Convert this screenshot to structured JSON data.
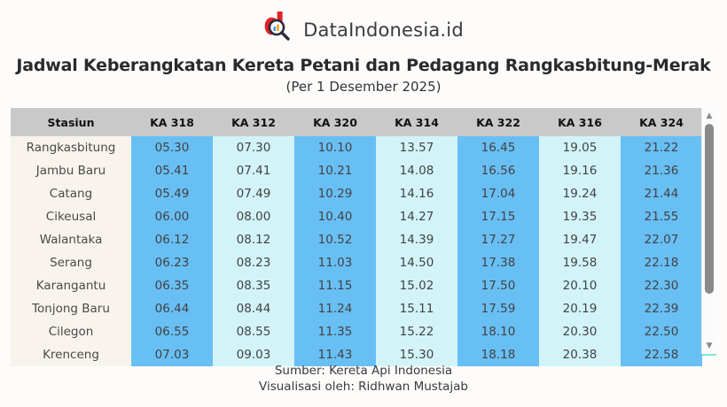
{
  "brand": {
    "name": "DataIndonesia.id"
  },
  "title": "Jadwal Keberangkatan Kereta Petani dan Pedagang Rangkasbitung-Merak",
  "subtitle": "(Per 1 Desember 2025)",
  "table": {
    "columns": [
      "Stasiun",
      "KA 318",
      "KA 312",
      "KA 320",
      "KA 314",
      "KA 322",
      "KA 316",
      "KA 324"
    ],
    "rows": [
      {
        "station": "Rangkasbitung",
        "times": [
          "05.30",
          "07.30",
          "10.10",
          "13.57",
          "16.45",
          "19.05",
          "21.22"
        ]
      },
      {
        "station": "Jambu Baru",
        "times": [
          "05.41",
          "07.41",
          "10.21",
          "14.08",
          "16.56",
          "19.16",
          "21.36"
        ]
      },
      {
        "station": "Catang",
        "times": [
          "05.49",
          "07.49",
          "10.29",
          "14.16",
          "17.04",
          "19.24",
          "21.44"
        ]
      },
      {
        "station": "Cikeusal",
        "times": [
          "06.00",
          "08.00",
          "10.40",
          "14.27",
          "17.15",
          "19.35",
          "21.55"
        ]
      },
      {
        "station": "Walantaka",
        "times": [
          "06.12",
          "08.12",
          "10.52",
          "14.39",
          "17.27",
          "19.47",
          "22.07"
        ]
      },
      {
        "station": "Serang",
        "times": [
          "06.23",
          "08.23",
          "11.03",
          "14.50",
          "17.38",
          "19.58",
          "22.18"
        ]
      },
      {
        "station": "Karangantu",
        "times": [
          "06.35",
          "08.35",
          "11.15",
          "15.02",
          "17.50",
          "20.10",
          "22.30"
        ]
      },
      {
        "station": "Tonjong Baru",
        "times": [
          "06.44",
          "08.44",
          "11.24",
          "15.11",
          "17.59",
          "20.19",
          "22.39"
        ]
      },
      {
        "station": "Cilegon",
        "times": [
          "06.55",
          "08.55",
          "11.35",
          "15.22",
          "18.10",
          "20.30",
          "22.50"
        ]
      },
      {
        "station": "Krenceng",
        "times": [
          "07.03",
          "09.03",
          "11.43",
          "15.30",
          "18.18",
          "20.38",
          "22.58"
        ]
      }
    ]
  },
  "scrollbar": {
    "up_glyph": "▲",
    "down_glyph": "▼"
  },
  "footer": {
    "source": "Sumber: Kereta Api Indonesia",
    "credit": "Visualisasi oleh: Ridhwan Mustajab"
  },
  "colors": {
    "page_bg": "#fdfcfa",
    "logo_red": "#e22128",
    "header_bg": "#c9c9c9",
    "station_bg": "#f8f3ec",
    "blue": "#68bff4",
    "cyan": "#d2f4f9",
    "teal": "#7de9d6",
    "logo_chart_blue": "#4a90d9",
    "logo_chart_orange": "#f5a623"
  }
}
